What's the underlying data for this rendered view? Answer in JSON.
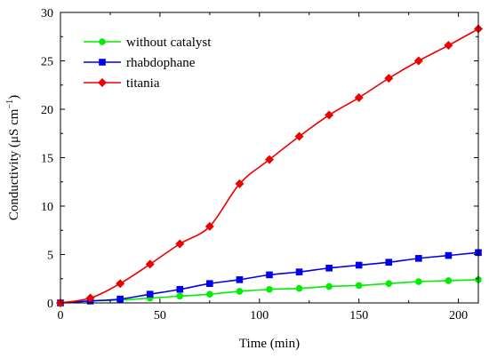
{
  "chart_data": {
    "type": "line",
    "xlabel": "Time (min)",
    "ylabel": "Conductivity (μS cm",
    "ylabel_sup": "−1",
    "ylabel_close": ")",
    "xlim": [
      0,
      210
    ],
    "ylim": [
      0,
      30
    ],
    "x_ticks": [
      0,
      50,
      100,
      150,
      200
    ],
    "y_ticks": [
      0,
      5,
      10,
      15,
      20,
      25,
      30
    ],
    "grid": false,
    "legend_position": "top-left",
    "series": [
      {
        "name": "without catalyst",
        "color": "#00ee00",
        "marker": "circle",
        "x": [
          0,
          15,
          30,
          45,
          60,
          75,
          90,
          105,
          120,
          135,
          150,
          165,
          180,
          195,
          210
        ],
        "y": [
          0,
          0.2,
          0.3,
          0.5,
          0.7,
          0.9,
          1.2,
          1.4,
          1.5,
          1.7,
          1.8,
          2.0,
          2.2,
          2.3,
          2.4
        ]
      },
      {
        "name": "rhabdophane",
        "color": "#0000ee",
        "marker": "square",
        "x": [
          0,
          15,
          30,
          45,
          60,
          75,
          90,
          105,
          120,
          135,
          150,
          165,
          180,
          195,
          210
        ],
        "y": [
          0,
          0.2,
          0.4,
          0.9,
          1.4,
          2.0,
          2.4,
          2.9,
          3.2,
          3.6,
          3.9,
          4.2,
          4.6,
          4.9,
          5.2
        ]
      },
      {
        "name": "titania",
        "color": "#ee0000",
        "marker": "diamond",
        "x": [
          0,
          15,
          30,
          45,
          60,
          75,
          90,
          105,
          120,
          135,
          150,
          165,
          180,
          195,
          210
        ],
        "y": [
          0,
          0.5,
          2.0,
          4.0,
          6.1,
          7.9,
          12.3,
          14.8,
          17.2,
          19.4,
          21.2,
          23.2,
          25.0,
          26.6,
          28.3
        ]
      }
    ]
  }
}
